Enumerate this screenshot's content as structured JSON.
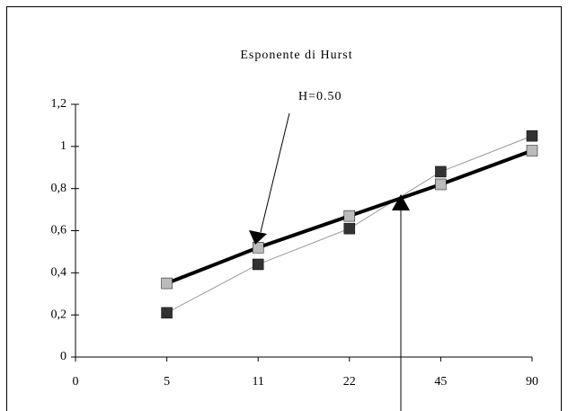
{
  "chart_data": {
    "type": "line",
    "title": "Esponente di Hurst",
    "annotation": "H=0.50",
    "categories": [
      "0",
      "5",
      "11",
      "22",
      "45",
      "90"
    ],
    "series": [
      {
        "color": "#333333",
        "line_color": "#999999",
        "line_width": 1,
        "values": [
          null,
          0.21,
          0.44,
          0.61,
          0.88,
          1.05
        ]
      },
      {
        "color": "#bbbbbb",
        "line_color": "#000000",
        "line_width": 4,
        "values": [
          null,
          0.35,
          0.52,
          0.67,
          0.82,
          0.98
        ]
      }
    ],
    "ylim": [
      0,
      1.2
    ],
    "yticks": [
      0,
      {
        "value": 0.2,
        "label": "0,2"
      },
      {
        "value": 0.4,
        "label": "0,4"
      },
      {
        "value": 0.6,
        "label": "0,6"
      },
      {
        "value": 0.8,
        "label": "0,8"
      },
      1,
      {
        "value": 1.2,
        "label": "1,2"
      }
    ]
  }
}
